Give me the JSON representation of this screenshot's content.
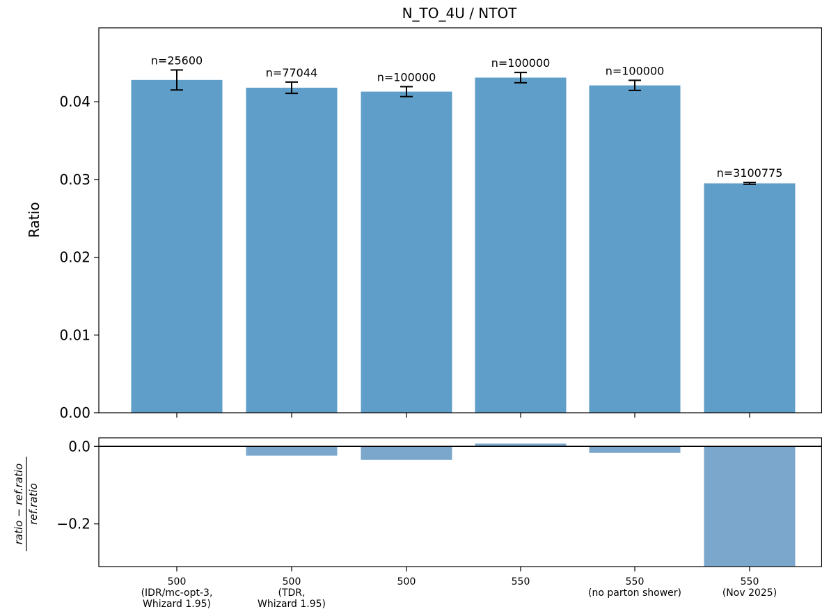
{
  "chart_data": [
    {
      "type": "bar",
      "title": "N_TO_4U / NTOT",
      "ylabel": "Ratio",
      "xlabel": "",
      "ylim": [
        0,
        0.0495
      ],
      "yticks": [
        0.0,
        0.01,
        0.02,
        0.03,
        0.04
      ],
      "ytick_labels": [
        "0.00",
        "0.01",
        "0.02",
        "0.03",
        "0.04"
      ],
      "categories": [
        [
          "500",
          "(IDR/mc-opt-3,",
          "Whizard 1.95)"
        ],
        [
          "500",
          "(TDR,",
          "Whizard 1.95)"
        ],
        [
          "500"
        ],
        [
          "550"
        ],
        [
          "550",
          "(no parton shower)"
        ],
        [
          "550",
          "(Nov 2025)"
        ]
      ],
      "values": [
        0.0428,
        0.0418,
        0.0413,
        0.0431,
        0.0421,
        0.0295
      ],
      "errors": [
        0.00129,
        0.00073,
        0.00064,
        0.00066,
        0.00065,
        0.00012
      ],
      "annotations": [
        "n=25600",
        "n=77044",
        "n=100000",
        "n=100000",
        "n=100000",
        "n=3100775"
      ],
      "bar_color": "#5f9ec9",
      "grid": false
    },
    {
      "type": "bar",
      "title": "",
      "ylabel": "ratio − ref.ratio / ref.ratio",
      "ylabel_numerator": "ratio − ref.ratio",
      "ylabel_denominator": "ref.ratio",
      "ylim": [
        -0.31,
        0.022
      ],
      "yticks": [
        0.0,
        -0.2
      ],
      "ytick_labels": [
        "0.0",
        "−0.2"
      ],
      "values": [
        0.0,
        -0.024,
        -0.035,
        0.007,
        -0.017,
        -0.31
      ],
      "reference_line": 0.0,
      "bar_color": "#7ba7cd",
      "grid": false
    }
  ]
}
